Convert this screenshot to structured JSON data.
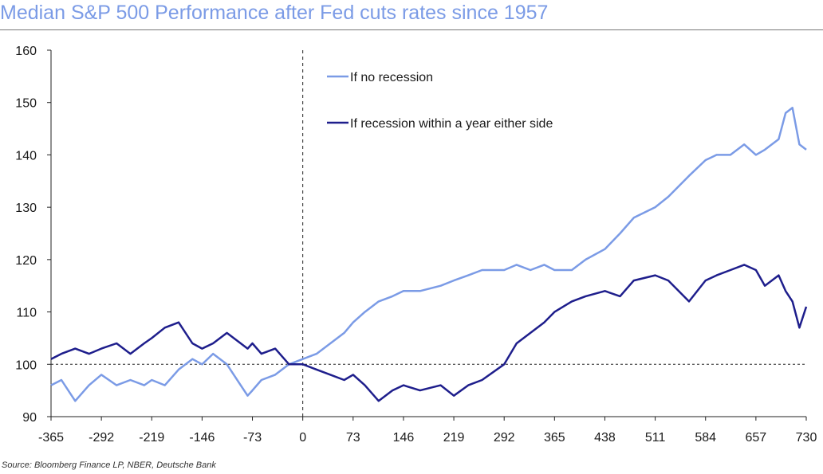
{
  "chart_data": {
    "type": "line",
    "title": "Median S&P 500 Performance after Fed cuts rates since 1957",
    "source": "Source: Bloomberg Finance LP, NBER, Deutsche Bank",
    "xlabel": "",
    "ylabel": "",
    "xlim": [
      -365,
      730
    ],
    "ylim": [
      90,
      160
    ],
    "x_ticks": [
      -365,
      -292,
      -219,
      -146,
      -73,
      0,
      73,
      146,
      219,
      292,
      365,
      438,
      511,
      584,
      657,
      730
    ],
    "y_ticks": [
      90,
      100,
      110,
      120,
      130,
      140,
      150,
      160
    ],
    "reference_lines": [
      {
        "orientation": "horizontal",
        "value": 100,
        "style": "dashed"
      },
      {
        "orientation": "vertical",
        "value": 0,
        "style": "dashed"
      }
    ],
    "legend": [
      {
        "label": "If no recession",
        "color": "#7b9be6"
      },
      {
        "label": "If recession within a year either side",
        "color": "#1e1e8c"
      }
    ],
    "series": [
      {
        "name": "If no recession",
        "color": "#7b9be6",
        "x": [
          -365,
          -350,
          -330,
          -310,
          -292,
          -270,
          -250,
          -230,
          -219,
          -200,
          -180,
          -160,
          -146,
          -130,
          -110,
          -90,
          -80,
          -73,
          -60,
          -40,
          -20,
          0,
          20,
          40,
          60,
          73,
          90,
          110,
          130,
          146,
          170,
          200,
          219,
          240,
          260,
          292,
          310,
          330,
          350,
          365,
          390,
          410,
          438,
          460,
          480,
          511,
          530,
          560,
          584,
          600,
          620,
          640,
          657,
          670,
          690,
          700,
          710,
          720,
          730
        ],
        "values": [
          96,
          97,
          93,
          96,
          98,
          96,
          97,
          96,
          97,
          96,
          99,
          101,
          100,
          102,
          100,
          96,
          94,
          95,
          97,
          98,
          100,
          101,
          102,
          104,
          106,
          108,
          110,
          112,
          113,
          114,
          114,
          115,
          116,
          117,
          118,
          118,
          119,
          118,
          119,
          118,
          118,
          120,
          122,
          125,
          128,
          130,
          132,
          136,
          139,
          140,
          140,
          142,
          140,
          141,
          143,
          148,
          149,
          142,
          141
        ]
      },
      {
        "name": "If recession within a year either side",
        "color": "#1e1e8c",
        "x": [
          -365,
          -350,
          -330,
          -310,
          -292,
          -270,
          -250,
          -230,
          -219,
          -200,
          -180,
          -160,
          -146,
          -130,
          -110,
          -90,
          -80,
          -73,
          -60,
          -40,
          -20,
          0,
          20,
          40,
          60,
          73,
          90,
          110,
          130,
          146,
          170,
          200,
          219,
          240,
          260,
          292,
          310,
          330,
          350,
          365,
          390,
          410,
          438,
          460,
          480,
          511,
          530,
          560,
          584,
          600,
          620,
          640,
          657,
          670,
          690,
          700,
          710,
          720,
          730
        ],
        "values": [
          101,
          102,
          103,
          102,
          103,
          104,
          102,
          104,
          105,
          107,
          108,
          104,
          103,
          104,
          106,
          104,
          103,
          104,
          102,
          103,
          100,
          100,
          99,
          98,
          97,
          98,
          96,
          93,
          95,
          96,
          95,
          96,
          94,
          96,
          97,
          100,
          104,
          106,
          108,
          110,
          112,
          113,
          114,
          113,
          116,
          117,
          116,
          112,
          116,
          117,
          118,
          119,
          118,
          115,
          117,
          114,
          112,
          107,
          111
        ]
      }
    ]
  }
}
